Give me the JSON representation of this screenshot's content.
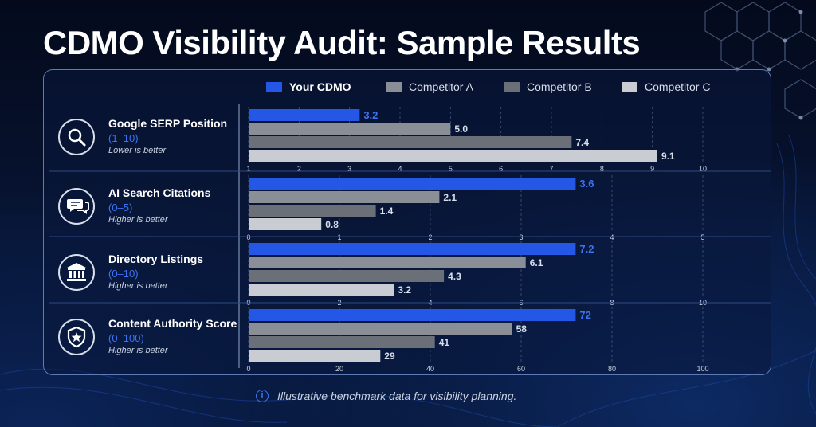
{
  "title": "CDMO Visibility Audit: Sample Results",
  "legend": [
    {
      "name": "Your CDMO",
      "color": "#2457e6"
    },
    {
      "name": "Competitor A",
      "color": "#8a8e96"
    },
    {
      "name": "Competitor B",
      "color": "#6b6f77"
    },
    {
      "name": "Competitor C",
      "color": "#c9ccd2"
    }
  ],
  "categories": [
    {
      "name": "Google SERP Position",
      "range": "(1–10)",
      "note": "Lower is better",
      "icon": "search-icon"
    },
    {
      "name": "AI Search Citations",
      "range": "(0–5)",
      "note": "Higher is better",
      "icon": "chat-bubbles-icon"
    },
    {
      "name": "Directory Listings",
      "range": "(0–10)",
      "note": "Higher is better",
      "icon": "building-columns-icon"
    },
    {
      "name": "Content Authority Score",
      "range": "(0–100)",
      "note": "Higher is better",
      "icon": "shield-star-icon"
    }
  ],
  "chart_data": [
    {
      "type": "bar",
      "title": "Google SERP Position",
      "series": [
        {
          "name": "Your CDMO",
          "values": [
            3.2
          ]
        },
        {
          "name": "Competitor A",
          "values": [
            5.0
          ]
        },
        {
          "name": "Competitor B",
          "values": [
            7.4
          ]
        },
        {
          "name": "Competitor C",
          "values": [
            9.1
          ]
        }
      ],
      "value_labels": [
        "3.2",
        "5.0",
        "7.4",
        "9.1"
      ],
      "xlim": [
        1,
        10
      ],
      "ticks": [
        "1",
        "2",
        "3",
        "4",
        "5",
        "6",
        "7",
        "8",
        "9",
        "10"
      ],
      "tick_values": [
        1,
        2,
        3,
        4,
        5,
        6,
        7,
        8,
        9,
        10
      ],
      "grid": true
    },
    {
      "type": "bar",
      "title": "AI Search Citations",
      "series": [
        {
          "name": "Your CDMO",
          "values": [
            3.6
          ]
        },
        {
          "name": "Competitor A",
          "values": [
            2.1
          ]
        },
        {
          "name": "Competitor B",
          "values": [
            1.4
          ]
        },
        {
          "name": "Competitor C",
          "values": [
            0.8
          ]
        }
      ],
      "value_labels": [
        "3.6",
        "2.1",
        "1.4",
        "0.8"
      ],
      "xlim": [
        0,
        5
      ],
      "ticks": [
        "0",
        "1",
        "2",
        "3",
        "4",
        "5"
      ],
      "tick_values": [
        0,
        1,
        2,
        3,
        4,
        5
      ],
      "grid": true
    },
    {
      "type": "bar",
      "title": "Directory Listings",
      "series": [
        {
          "name": "Your CDMO",
          "values": [
            7.2
          ]
        },
        {
          "name": "Competitor A",
          "values": [
            6.1
          ]
        },
        {
          "name": "Competitor B",
          "values": [
            4.3
          ]
        },
        {
          "name": "Competitor C",
          "values": [
            3.2
          ]
        }
      ],
      "value_labels": [
        "7.2",
        "6.1",
        "4.3",
        "3.2"
      ],
      "xlim": [
        0,
        10
      ],
      "ticks": [
        "0",
        "2",
        "4",
        "6",
        "8",
        "10"
      ],
      "tick_values": [
        0,
        2,
        4,
        6,
        8,
        10
      ],
      "grid": true
    },
    {
      "type": "bar",
      "title": "Content Authority Score",
      "series": [
        {
          "name": "Your CDMO",
          "values": [
            72
          ]
        },
        {
          "name": "Competitor A",
          "values": [
            58
          ]
        },
        {
          "name": "Competitor B",
          "values": [
            41
          ]
        },
        {
          "name": "Competitor C",
          "values": [
            29
          ]
        }
      ],
      "value_labels": [
        "72",
        "58",
        "41",
        "29"
      ],
      "xlim": [
        0,
        100
      ],
      "ticks": [
        "0",
        "20",
        "40",
        "60",
        "80",
        "100"
      ],
      "tick_values": [
        0,
        20,
        40,
        60,
        80,
        100
      ],
      "grid": true
    }
  ],
  "footer": {
    "icon": "info-icon",
    "text": "Illustrative benchmark data for visibility planning."
  }
}
